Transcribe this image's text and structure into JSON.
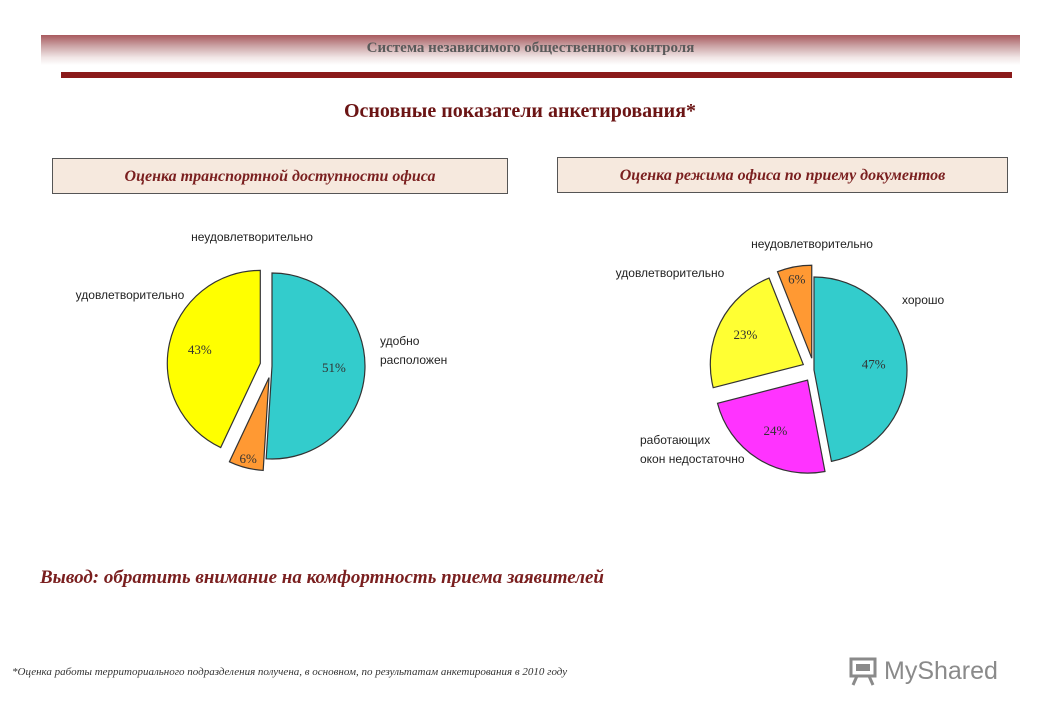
{
  "header": {
    "title": "Система независимого общественного контроля"
  },
  "main_title": "Основные показатели анкетирования*",
  "chart_data": [
    {
      "type": "pie",
      "title": "Оценка транспортной доступности офиса",
      "slices": [
        {
          "label": "удобно расположен",
          "label_lines": [
            "удобно",
            "расположен"
          ],
          "value": 51,
          "value_label": "51%",
          "color": "#33cccc",
          "exploded": false
        },
        {
          "label": "неудовлетворительно",
          "label_lines": [
            "неудовлетворительно"
          ],
          "value": 6,
          "value_label": "6%",
          "color": "#ff9933",
          "exploded": true
        },
        {
          "label": "удовлетворительно",
          "label_lines": [
            "удовлетворительно"
          ],
          "value": 43,
          "value_label": "43%",
          "color": "#ffff00",
          "exploded": true
        }
      ]
    },
    {
      "type": "pie",
      "title": "Оценка режима офиса по приему документов",
      "slices": [
        {
          "label": "хорошо",
          "label_lines": [
            "хорошо"
          ],
          "value": 47,
          "value_label": "47%",
          "color": "#33cccc",
          "exploded": false
        },
        {
          "label": "работающих окон недостаточно",
          "label_lines": [
            "работающих",
            "окон недостаточно"
          ],
          "value": 24,
          "value_label": "24%",
          "color": "#ff33ff",
          "exploded": true
        },
        {
          "label": "удовлетворительно",
          "label_lines": [
            "удовлетворительно"
          ],
          "value": 23,
          "value_label": "23%",
          "color": "#ffff33",
          "exploded": true
        },
        {
          "label": "неудовлетворительно",
          "label_lines": [
            "неудовлетворительно"
          ],
          "value": 6,
          "value_label": "6%",
          "color": "#ff9933",
          "exploded": true
        }
      ]
    }
  ],
  "conclusion": "Вывод:  обратить внимание на комфортность приема заявителей",
  "footnote": "*Оценка работы территориального подразделения получена, в основном, по результатам анкетирования в 2010 году",
  "brand": {
    "name": "MyShared",
    "icon": "presentation-board-icon"
  }
}
